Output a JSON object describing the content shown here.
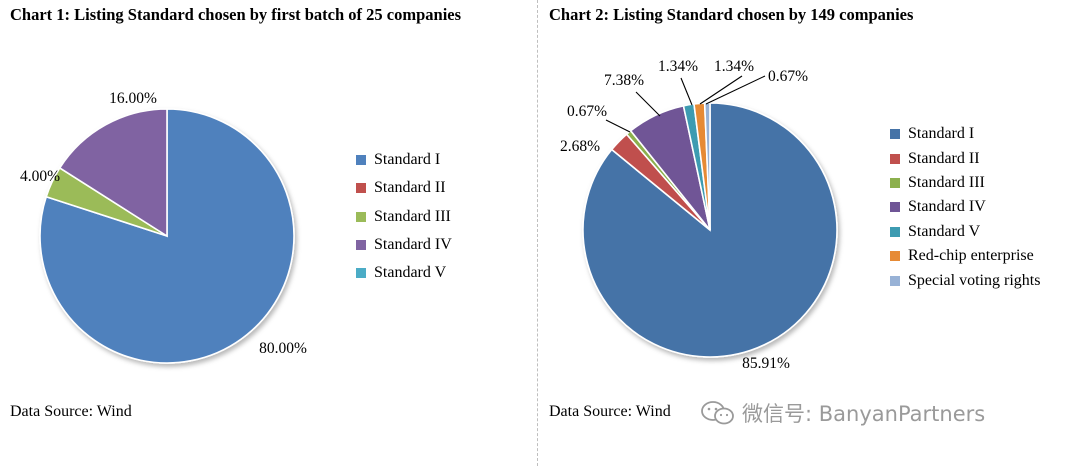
{
  "charts": {
    "chart1": {
      "title": "Chart 1: Listing Standard chosen by first batch of 25 companies",
      "source": "Data Source: Wind"
    },
    "chart2": {
      "title": "Chart 2: Listing Standard chosen by 149 companies",
      "source": "Data Source: Wind"
    }
  },
  "watermark": {
    "text": "微信号: BanyanPartners",
    "icon": "wechat-icon"
  },
  "chart_data": [
    {
      "type": "pie",
      "title": "Chart 1: Listing Standard chosen by first batch of 25 companies",
      "categories": [
        "Standard I",
        "Standard II",
        "Standard III",
        "Standard IV",
        "Standard V"
      ],
      "values": [
        80.0,
        0,
        4.0,
        16.0,
        0
      ],
      "labels": [
        "80.00%",
        "",
        "4.00%",
        "16.00%",
        ""
      ],
      "colors": [
        "#4f81bd",
        "#c0504d",
        "#9bbb59",
        "#8064a2",
        "#4bacc6"
      ],
      "legend": "right",
      "source": "Data Source: Wind"
    },
    {
      "type": "pie",
      "title": "Chart 2: Listing Standard chosen by 149 companies",
      "categories": [
        "Standard I",
        "Standard II",
        "Standard III",
        "Standard IV",
        "Standard V",
        "Red-chip enterprise",
        "Special voting rights"
      ],
      "values": [
        85.91,
        2.68,
        0.67,
        7.38,
        1.34,
        1.34,
        0.67
      ],
      "labels": [
        "85.91%",
        "2.68%",
        "0.67%",
        "7.38%",
        "1.34%",
        "1.34%",
        "0.67%"
      ],
      "colors": [
        "#4573a7",
        "#c0504d",
        "#8cb04d",
        "#6f5596",
        "#3d9bb1",
        "#e68a35",
        "#98b2d6"
      ],
      "legend": "right",
      "source": "Data Source: Wind"
    }
  ]
}
